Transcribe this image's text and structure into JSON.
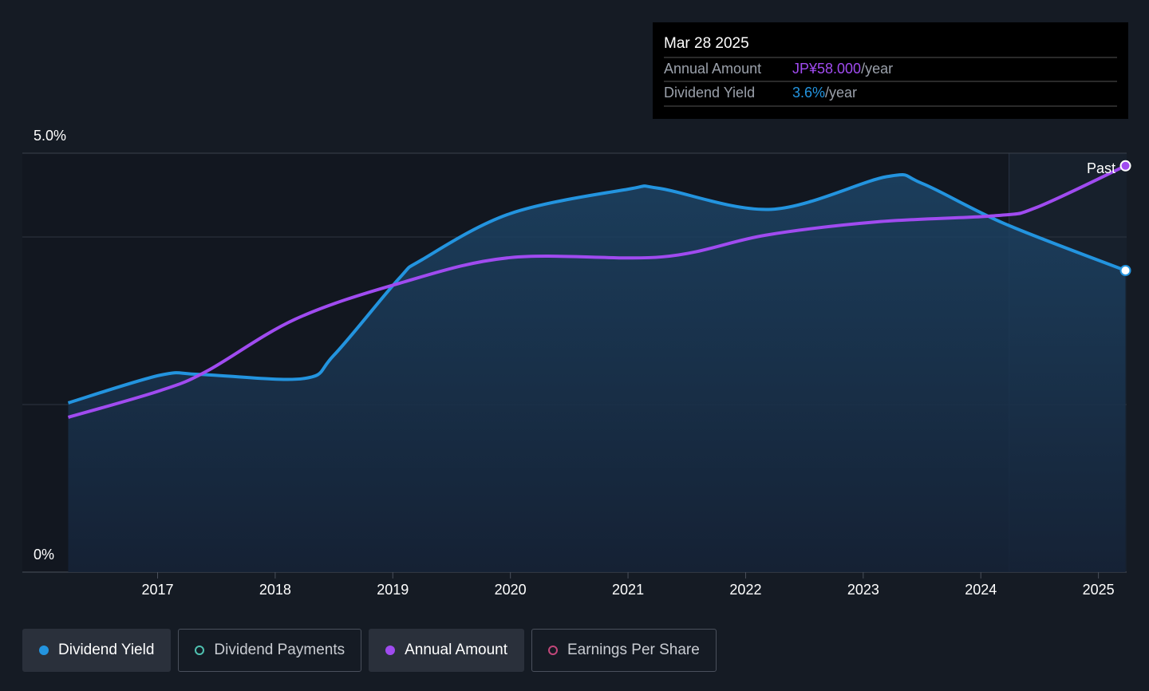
{
  "chart_data": {
    "type": "line",
    "xlim": [
      2015.85,
      2025.24
    ],
    "xticks": [
      2017,
      2018,
      2019,
      2020,
      2021,
      2022,
      2023,
      2024,
      2025
    ],
    "ylim": [
      0,
      5
    ],
    "yticks": [
      {
        "value": 0,
        "label": "0%"
      },
      {
        "value": 5,
        "label": "5.0%"
      }
    ],
    "ygrid": [
      2,
      4
    ],
    "y2lim": [
      0,
      59.8
    ],
    "series": [
      {
        "name": "Dividend Yield",
        "color": "#2394df",
        "area": true,
        "active": true,
        "x": [
          2016.24,
          2017.02,
          2017.36,
          2018.24,
          2018.5,
          2019.05,
          2019.25,
          2020.0,
          2021.0,
          2021.27,
          2022.22,
          2023.2,
          2023.5,
          2024.2,
          2025.23
        ],
        "values": [
          2.02,
          2.35,
          2.36,
          2.31,
          2.59,
          3.5,
          3.73,
          4.28,
          4.57,
          4.58,
          4.33,
          4.72,
          4.64,
          4.16,
          3.6
        ]
      },
      {
        "name": "Annual Amount",
        "color": "#a04bf0",
        "axis": "y2",
        "active": true,
        "x": [
          2016.24,
          2017.02,
          2017.42,
          2018.17,
          2019.05,
          2020.0,
          2021.29,
          2022.17,
          2023.12,
          2024.14,
          2024.48,
          2025.23
        ],
        "values": [
          22.1,
          25.9,
          28.7,
          36.1,
          41.2,
          44.9,
          45.0,
          48.1,
          50.0,
          50.9,
          52.1,
          58.0
        ]
      }
    ],
    "other_legend_items": [
      {
        "name": "Dividend Payments",
        "color": "#4fc1b0"
      },
      {
        "name": "Earnings Per Share",
        "color": "#c2477a"
      }
    ],
    "past_region": {
      "label": "Past",
      "start": 2024.24
    },
    "tooltip": {
      "title": "Mar 28 2025",
      "rows": [
        {
          "label": "Annual Amount",
          "value": "JP¥58.000",
          "unit": "/year",
          "color": "#a04bf0"
        },
        {
          "label": "Dividend Yield",
          "value": "3.6%",
          "unit": "/year",
          "color": "#2394df"
        }
      ]
    }
  }
}
